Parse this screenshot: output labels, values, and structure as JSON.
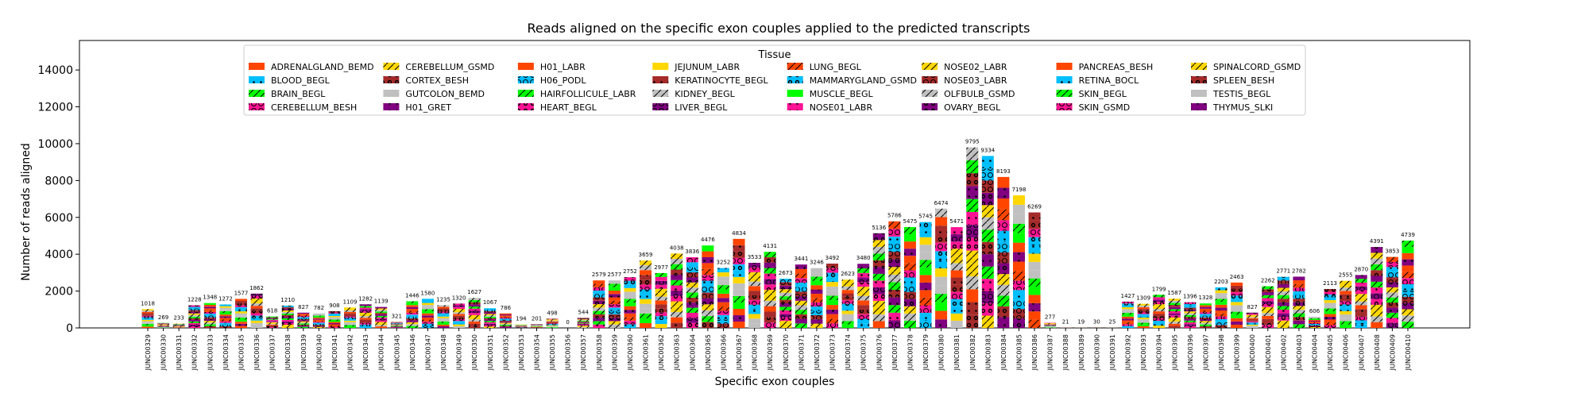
{
  "chart_data": {
    "type": "bar",
    "stacked": true,
    "title": "Reads aligned on the specific exon couples applied to the predicted transcripts",
    "xlabel": "Specific exon couples",
    "ylabel": "Number of reads aligned",
    "ylim": [
      0,
      15600
    ],
    "yticks": [
      0,
      2000,
      4000,
      6000,
      8000,
      10000,
      12000,
      14000
    ],
    "ytick_labels": [
      "0",
      "2000",
      "4000",
      "6000",
      "8000",
      "10000",
      "12000",
      "14000"
    ],
    "grid": false,
    "legend_placement": "top-center",
    "legend_title": "Tissue",
    "categories": [
      "JUNC00329",
      "JUNC00330",
      "JUNC00331",
      "JUNC00332",
      "JUNC00333",
      "JUNC00334",
      "JUNC00335",
      "JUNC00336",
      "JUNC00337",
      "JUNC00338",
      "JUNC00339",
      "JUNC00340",
      "JUNC00341",
      "JUNC00342",
      "JUNC00343",
      "JUNC00344",
      "JUNC00345",
      "JUNC00346",
      "JUNC00347",
      "JUNC00348",
      "JUNC00349",
      "JUNC00350",
      "JUNC00351",
      "JUNC00352",
      "JUNC00353",
      "JUNC00354",
      "JUNC00355",
      "JUNC00356",
      "JUNC00357",
      "JUNC00358",
      "JUNC00359",
      "JUNC00360",
      "JUNC00361",
      "JUNC00362",
      "JUNC00363",
      "JUNC00364",
      "JUNC00365",
      "JUNC00366",
      "JUNC00367",
      "JUNC00368",
      "JUNC00369",
      "JUNC00370",
      "JUNC00371",
      "JUNC00372",
      "JUNC00373",
      "JUNC00374",
      "JUNC00375",
      "JUNC00376",
      "JUNC00377",
      "JUNC00378",
      "JUNC00379",
      "JUNC00380",
      "JUNC00381",
      "JUNC00382",
      "JUNC00383",
      "JUNC00384",
      "JUNC00385",
      "JUNC00386",
      "JUNC00387",
      "JUNC00388",
      "JUNC00389",
      "JUNC00390",
      "JUNC00391",
      "JUNC00392",
      "JUNC00393",
      "JUNC00394",
      "JUNC00395",
      "JUNC00396",
      "JUNC00397",
      "JUNC00398",
      "JUNC00399",
      "JUNC00400",
      "JUNC00401",
      "JUNC00402",
      "JUNC00403",
      "JUNC00404",
      "JUNC00405",
      "JUNC00406",
      "JUNC00407",
      "JUNC00408",
      "JUNC00409",
      "JUNC00410"
    ],
    "totals": [
      1018,
      269,
      233,
      1228,
      1348,
      1272,
      1577,
      1862,
      618,
      1210,
      827,
      782,
      908,
      1109,
      1282,
      1139,
      321,
      1446,
      1580,
      1235,
      1320,
      1627,
      1067,
      786,
      194,
      201,
      498,
      0,
      544,
      2579,
      2577,
      2752,
      3659,
      2977,
      4038,
      3836,
      4476,
      3252,
      4834,
      3533,
      4131,
      2673,
      3441,
      3246,
      3492,
      2623,
      3480,
      5136,
      5786,
      5475,
      5745,
      6474,
      5471,
      9795,
      9334,
      8193,
      7198,
      6269,
      277,
      21,
      19,
      30,
      25,
      1427,
      1309,
      1799,
      1587,
      1396,
      1328,
      2203,
      2463,
      827,
      2262,
      2771,
      2782,
      606,
      2113,
      2555,
      2870,
      4391,
      3853,
      4739
    ],
    "series": [
      {
        "name": "ADRENALGLAND_BEMD",
        "color": "#ff4500",
        "hatch": ""
      },
      {
        "name": "BLOOD_BEGL",
        "color": "#00bfff",
        "hatch": "dot"
      },
      {
        "name": "BRAIN_BEGL",
        "color": "#00ff00",
        "hatch": "slash"
      },
      {
        "name": "CEREBELLUM_BESH",
        "color": "#ff1493",
        "hatch": "circle"
      },
      {
        "name": "CEREBELLUM_GSMD",
        "color": "#ffd700",
        "hatch": "slash"
      },
      {
        "name": "CORTEX_BESH",
        "color": "#a52a2a",
        "hatch": "ring"
      },
      {
        "name": "GUTCOLON_BEMD",
        "color": "#c0c0c0",
        "hatch": ""
      },
      {
        "name": "H01_GRET",
        "color": "#800080",
        "hatch": "dot"
      },
      {
        "name": "H01_LABR",
        "color": "#ff4500",
        "hatch": ""
      },
      {
        "name": "H06_PODL",
        "color": "#00bfff",
        "hatch": "circle"
      },
      {
        "name": "HAIRFOLLICULE_LABR",
        "color": "#00ff00",
        "hatch": "slash"
      },
      {
        "name": "HEART_BEGL",
        "color": "#ff1493",
        "hatch": "ring"
      },
      {
        "name": "JEJUNUM_LABR",
        "color": "#ffd700",
        "hatch": ""
      },
      {
        "name": "KERATINOCYTE_BEGL",
        "color": "#a52a2a",
        "hatch": "dot"
      },
      {
        "name": "KIDNEY_BEGL",
        "color": "#c0c0c0",
        "hatch": "slash"
      },
      {
        "name": "LIVER_BEGL",
        "color": "#800080",
        "hatch": "circle"
      },
      {
        "name": "LUNG_BEGL",
        "color": "#ff4500",
        "hatch": "slash"
      },
      {
        "name": "MAMMARYGLAND_GSMD",
        "color": "#00bfff",
        "hatch": "ring"
      },
      {
        "name": "MUSCLE_BEGL",
        "color": "#00ff00",
        "hatch": ""
      },
      {
        "name": "NOSE01_LABR",
        "color": "#ff1493",
        "hatch": "dot"
      },
      {
        "name": "NOSE02_LABR",
        "color": "#ffd700",
        "hatch": "slash"
      },
      {
        "name": "NOSE03_LABR",
        "color": "#a52a2a",
        "hatch": "circle"
      },
      {
        "name": "OLFBULB_GSMD",
        "color": "#c0c0c0",
        "hatch": "slash"
      },
      {
        "name": "OVARY_BEGL",
        "color": "#800080",
        "hatch": "ring"
      },
      {
        "name": "PANCREAS_BESH",
        "color": "#ff4500",
        "hatch": ""
      },
      {
        "name": "RETINA_BOCL",
        "color": "#00bfff",
        "hatch": "dot"
      },
      {
        "name": "SKIN_BEGL",
        "color": "#00ff00",
        "hatch": "slash"
      },
      {
        "name": "SKIN_GSMD",
        "color": "#ff1493",
        "hatch": "circle"
      },
      {
        "name": "SPINALCORD_GSMD",
        "color": "#ffd700",
        "hatch": "slash"
      },
      {
        "name": "SPLEEN_BESH",
        "color": "#a52a2a",
        "hatch": "ring"
      },
      {
        "name": "TESTIS_BEGL",
        "color": "#c0c0c0",
        "hatch": ""
      },
      {
        "name": "THYMUS_SLKI",
        "color": "#800080",
        "hatch": "dot"
      }
    ]
  }
}
